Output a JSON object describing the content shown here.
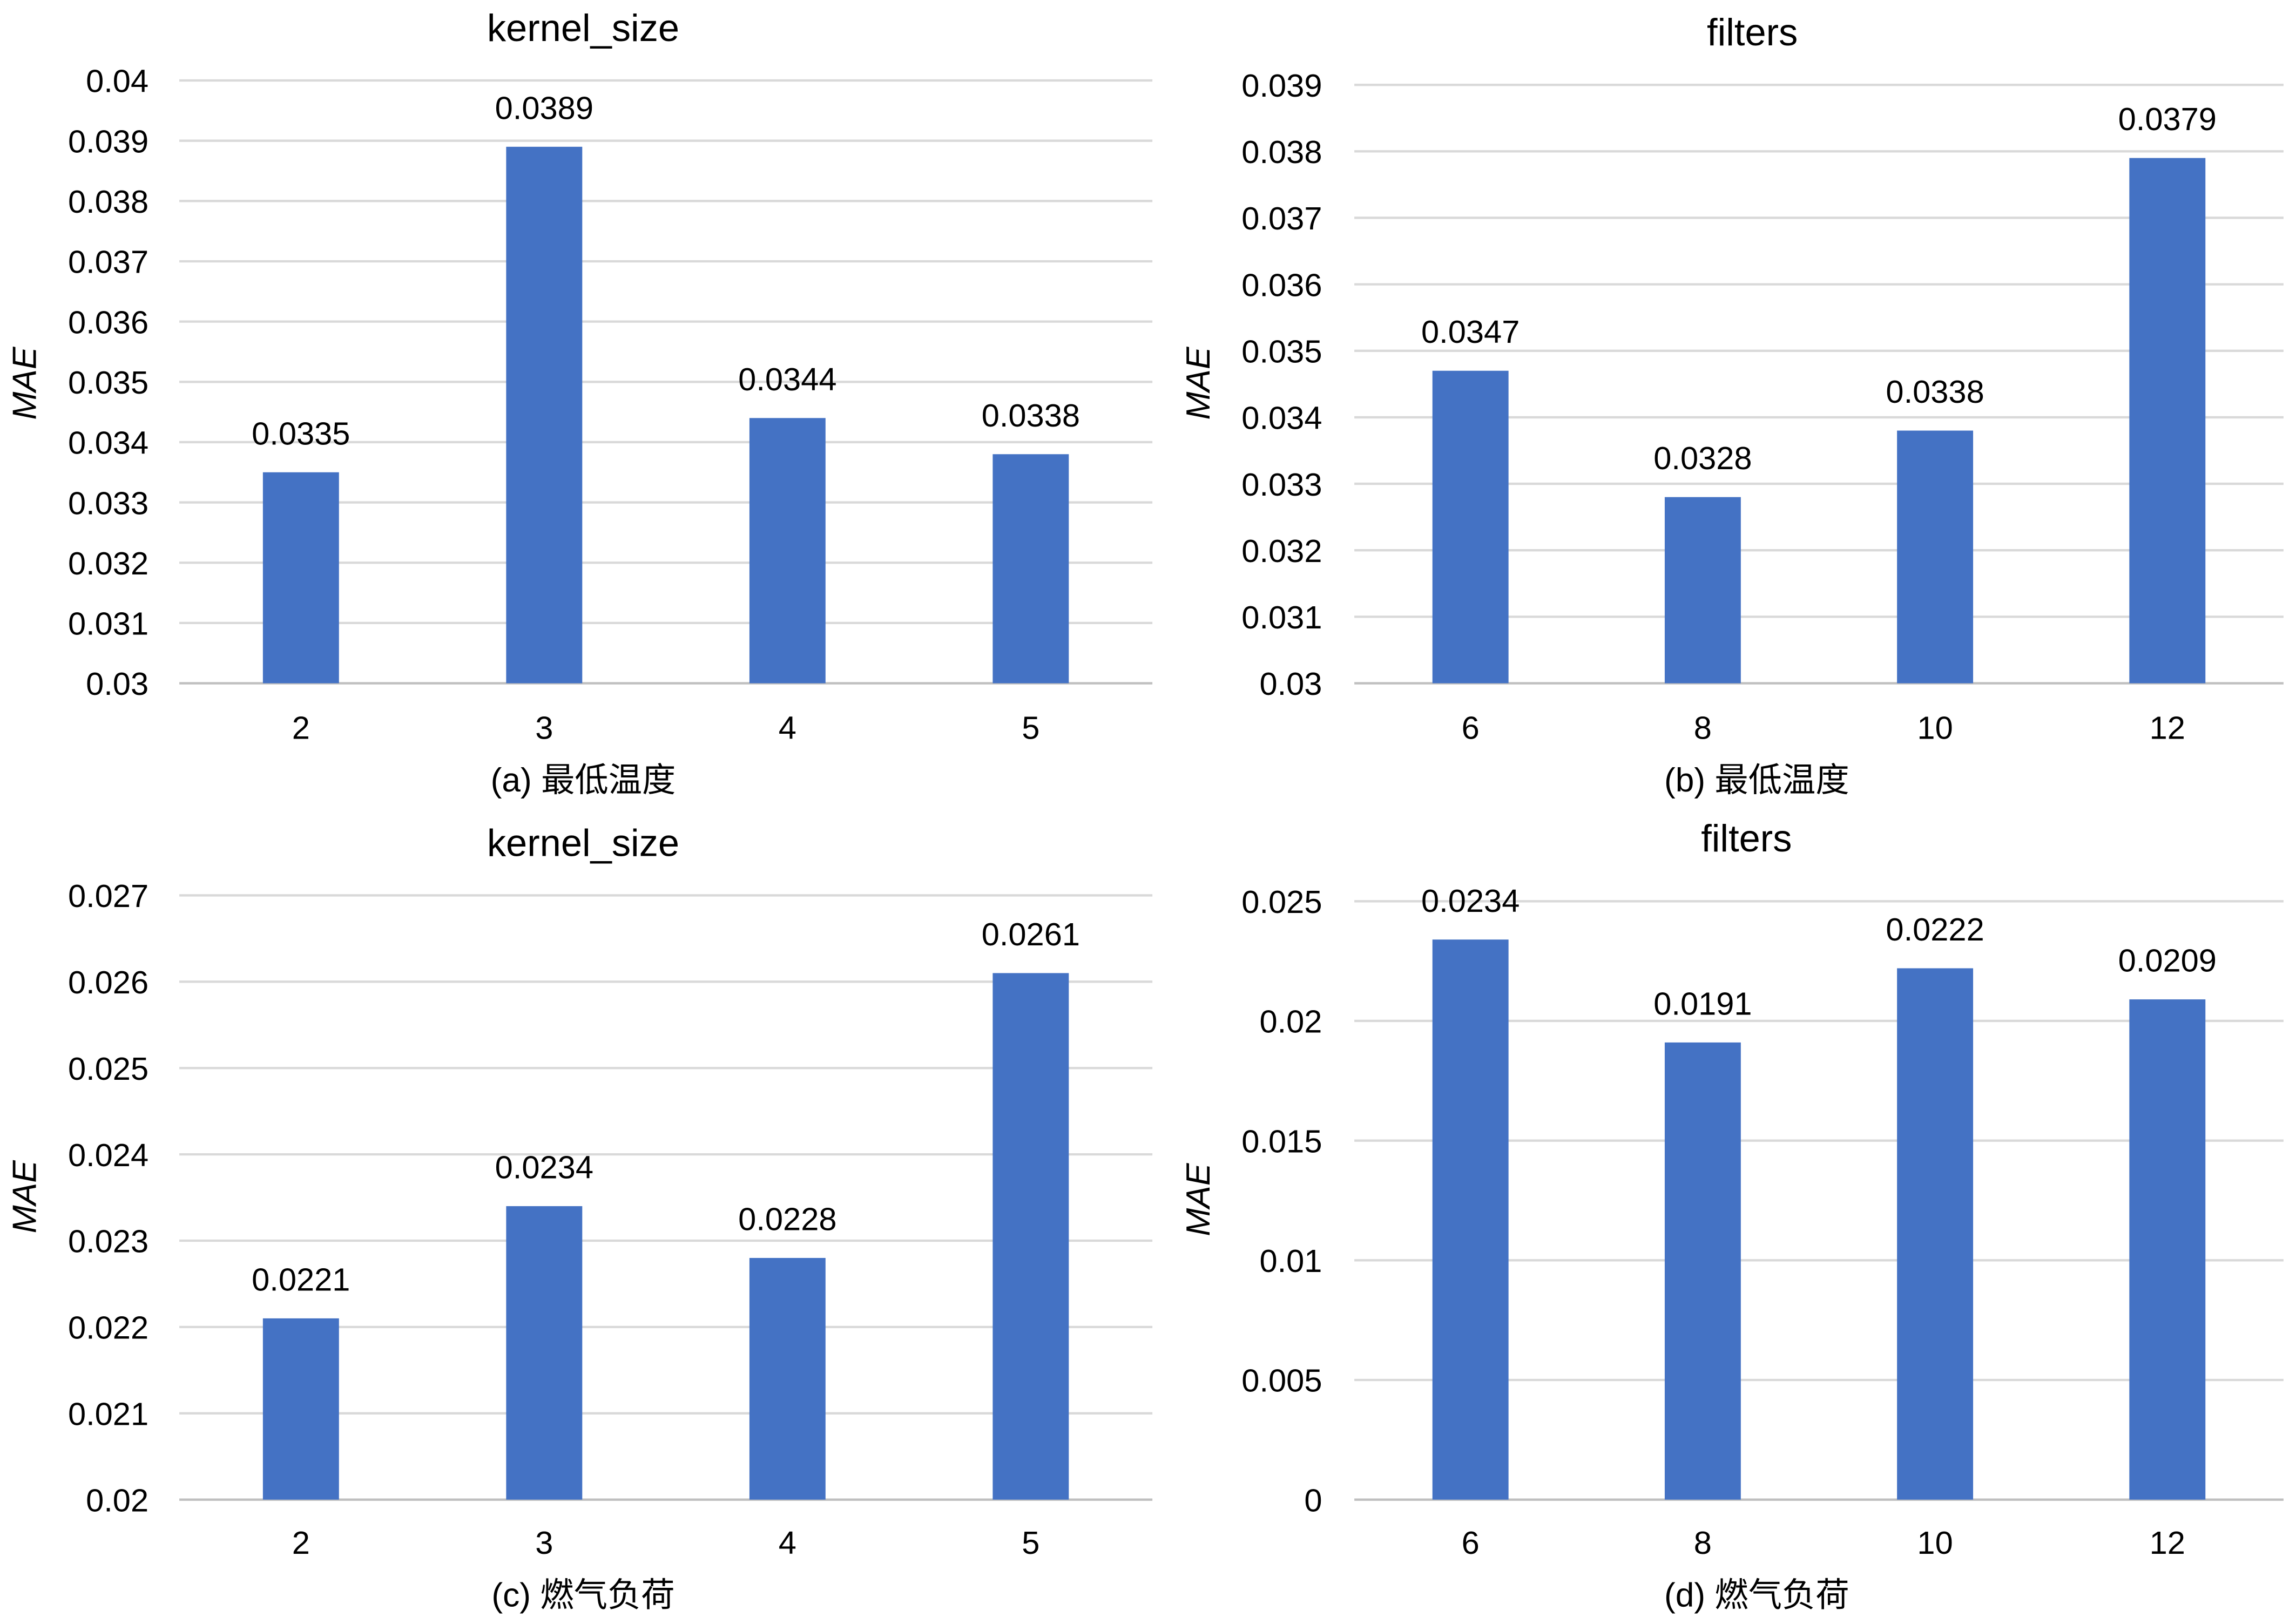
{
  "bar_color": "#4472C4",
  "chart_data": [
    {
      "type": "bar",
      "title": "kernel_size",
      "caption": "(a) 最低温度",
      "ylabel": "MAE",
      "categories": [
        "2",
        "3",
        "4",
        "5"
      ],
      "values": [
        0.0335,
        0.0389,
        0.0344,
        0.0338
      ],
      "data_labels": [
        "0.0335",
        "0.0389",
        "0.0344",
        "0.0338"
      ],
      "ylim": [
        0.03,
        0.04
      ],
      "yticks": [
        "0.03",
        "0.031",
        "0.032",
        "0.033",
        "0.034",
        "0.035",
        "0.036",
        "0.037",
        "0.038",
        "0.039",
        "0.04"
      ],
      "grid": true
    },
    {
      "type": "bar",
      "title": "filters",
      "caption": "(b) 最低温度",
      "ylabel": "MAE",
      "categories": [
        "6",
        "8",
        "10",
        "12"
      ],
      "values": [
        0.0347,
        0.0328,
        0.0338,
        0.0379
      ],
      "data_labels": [
        "0.0347",
        "0.0328",
        "0.0338",
        "0.0379"
      ],
      "ylim": [
        0.03,
        0.039
      ],
      "yticks": [
        "0.03",
        "0.031",
        "0.032",
        "0.033",
        "0.034",
        "0.035",
        "0.036",
        "0.037",
        "0.038",
        "0.039"
      ],
      "grid": true
    },
    {
      "type": "bar",
      "title": "kernel_size",
      "caption": "(c) 燃气负荷",
      "ylabel": "MAE",
      "categories": [
        "2",
        "3",
        "4",
        "5"
      ],
      "values": [
        0.0221,
        0.0234,
        0.0228,
        0.0261
      ],
      "data_labels": [
        "0.0221",
        "0.0234",
        "0.0228",
        "0.0261"
      ],
      "ylim": [
        0.02,
        0.027
      ],
      "yticks": [
        "0.02",
        "0.021",
        "0.022",
        "0.023",
        "0.024",
        "0.025",
        "0.026",
        "0.027"
      ],
      "grid": true
    },
    {
      "type": "bar",
      "title": "filters",
      "caption": "(d) 燃气负荷",
      "ylabel": "MAE",
      "categories": [
        "6",
        "8",
        "10",
        "12"
      ],
      "values": [
        0.0234,
        0.0191,
        0.0222,
        0.0209
      ],
      "data_labels": [
        "0.0234",
        "0.0191",
        "0.0222",
        "0.0209"
      ],
      "ylim": [
        0,
        0.025
      ],
      "yticks": [
        "0",
        "0.005",
        "0.01",
        "0.015",
        "0.02",
        "0.025"
      ],
      "grid": true
    }
  ]
}
